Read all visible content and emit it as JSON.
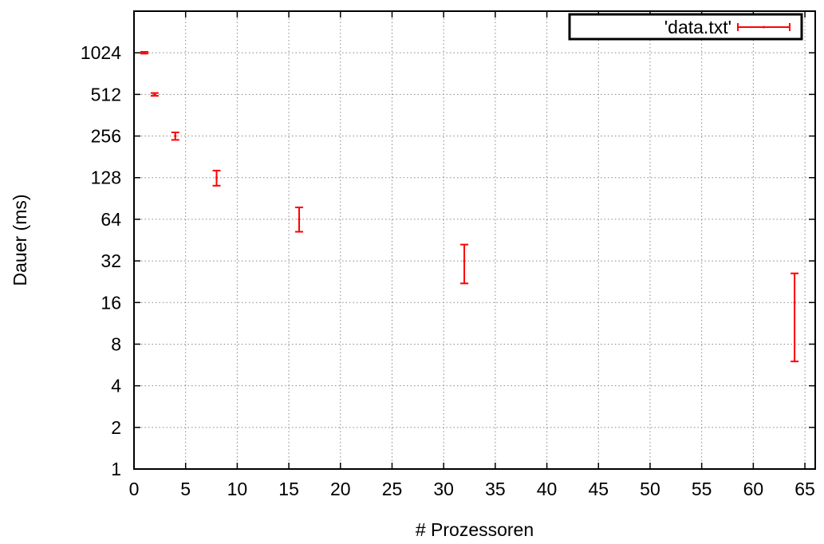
{
  "chart_data": {
    "type": "scatter",
    "xlabel": "# Prozessoren",
    "ylabel": "Dauer (ms)",
    "xlim": [
      0,
      66
    ],
    "ylim": [
      1,
      2048
    ],
    "y_scale": "log2",
    "x_ticks": [
      "0",
      "5",
      "10",
      "15",
      "20",
      "25",
      "30",
      "35",
      "40",
      "45",
      "50",
      "55",
      "60",
      "65"
    ],
    "y_ticks": [
      "1",
      "2",
      "4",
      "8",
      "16",
      "32",
      "64",
      "128",
      "256",
      "512",
      "1024"
    ],
    "grid": true,
    "legend_position": "top-right",
    "series": [
      {
        "name": "'data.txt'",
        "color": "#ff0000",
        "style": "errorbars",
        "points": [
          {
            "x": 1,
            "y": 1024,
            "ymin": 1010,
            "ymax": 1040
          },
          {
            "x": 2,
            "y": 512,
            "ymin": 500,
            "ymax": 524
          },
          {
            "x": 4,
            "y": 256,
            "ymin": 240,
            "ymax": 272
          },
          {
            "x": 8,
            "y": 128,
            "ymin": 112,
            "ymax": 144
          },
          {
            "x": 16,
            "y": 64,
            "ymin": 52,
            "ymax": 78
          },
          {
            "x": 32,
            "y": 32,
            "ymin": 22,
            "ymax": 42
          },
          {
            "x": 64,
            "y": 16,
            "ymin": 6,
            "ymax": 26
          }
        ]
      }
    ]
  }
}
